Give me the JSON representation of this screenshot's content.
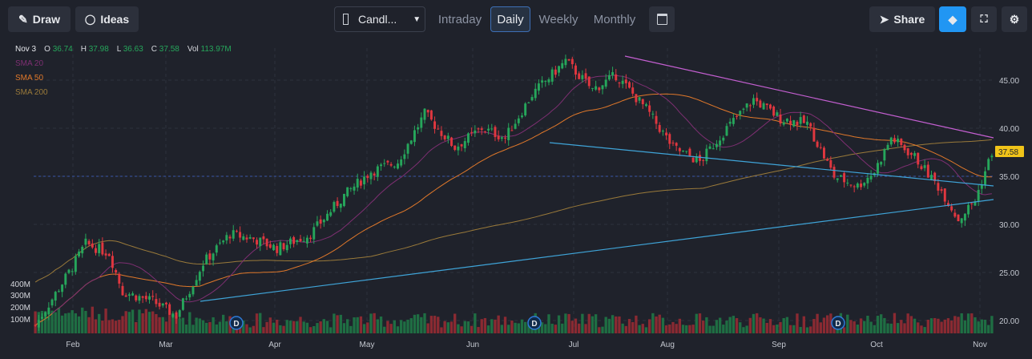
{
  "toolbar": {
    "draw_label": "Draw",
    "ideas_label": "Ideas",
    "chart_type_label": "Candl...",
    "tabs": [
      "Intraday",
      "Daily",
      "Weekly",
      "Monthly"
    ],
    "active_tab": "Daily",
    "share_label": "Share"
  },
  "legend": {
    "date": "Nov 3",
    "o_label": "O",
    "o_value": "36.74",
    "h_label": "H",
    "h_value": "37.98",
    "l_label": "L",
    "l_value": "36.63",
    "c_label": "C",
    "c_value": "37.58",
    "vol_label": "Vol",
    "vol_value": "113.97M",
    "sma": [
      {
        "name": "SMA 20",
        "color": "#7e2f72"
      },
      {
        "name": "SMA 50",
        "color": "#e0782a"
      },
      {
        "name": "SMA 200",
        "color": "#9a7a3a"
      }
    ]
  },
  "colors": {
    "up": "#26a65b",
    "down": "#e0373f",
    "accent": "#2196f3",
    "price_badge": "#f0c419"
  },
  "chart_data": {
    "type": "candlestick",
    "x_ticks": [
      "Feb",
      "Mar",
      "Apr",
      "May",
      "Jun",
      "Jul",
      "Aug",
      "Sep",
      "Oct",
      "Nov"
    ],
    "y_ticks": [
      "45.00",
      "40.00",
      "35.00",
      "30.00",
      "25.00",
      "20.00"
    ],
    "ylim": [
      18.5,
      47.5
    ],
    "volume_ticks": [
      "400M",
      "300M",
      "200M",
      "100M"
    ],
    "last_price": "37.58",
    "dividend_marker": "D",
    "dividend_count": 3,
    "price_waypoints": [
      [
        0,
        19.5
      ],
      [
        10,
        25
      ],
      [
        15,
        28
      ],
      [
        22,
        27
      ],
      [
        26,
        23
      ],
      [
        35,
        22
      ],
      [
        42,
        20.5
      ],
      [
        50,
        26
      ],
      [
        58,
        29
      ],
      [
        65,
        28.5
      ],
      [
        72,
        27.5
      ],
      [
        82,
        29
      ],
      [
        92,
        33
      ],
      [
        100,
        35.5
      ],
      [
        108,
        36.5
      ],
      [
        116,
        41.5
      ],
      [
        125,
        38
      ],
      [
        133,
        40
      ],
      [
        140,
        39
      ],
      [
        148,
        43.5
      ],
      [
        158,
        47
      ],
      [
        166,
        44
      ],
      [
        173,
        45.5
      ],
      [
        182,
        42
      ],
      [
        190,
        38
      ],
      [
        198,
        36.5
      ],
      [
        206,
        40
      ],
      [
        214,
        43
      ],
      [
        222,
        41
      ],
      [
        230,
        40.5
      ],
      [
        238,
        35
      ],
      [
        245,
        34
      ],
      [
        250,
        35.5
      ],
      [
        255,
        39
      ],
      [
        262,
        37
      ],
      [
        270,
        33.5
      ],
      [
        275,
        30.5
      ],
      [
        280,
        32.5
      ],
      [
        285,
        37.5
      ]
    ]
  }
}
